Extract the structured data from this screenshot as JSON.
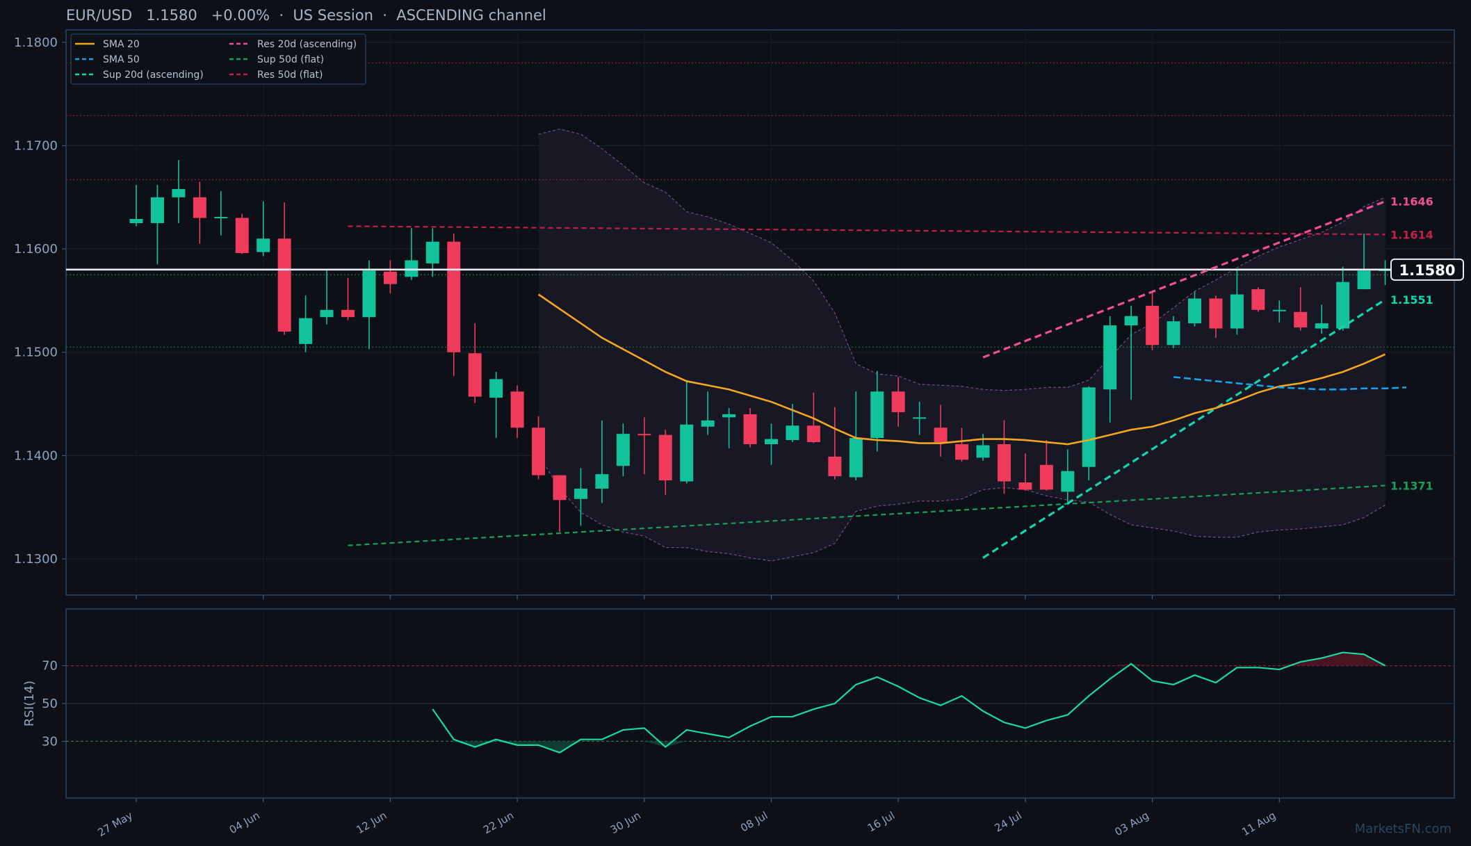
{
  "header": {
    "title": "EUR/USD   1.1580   +0.00%  ·  US Session  ·  ASCENDING channel"
  },
  "watermark": "MarketsFN.com",
  "colors": {
    "up": "#12c29b",
    "down": "#ef3b5c",
    "sma20": "#f5a623",
    "sma50": "#1aa3e8",
    "sup20": "#12d6b0",
    "res20": "#ee4f95",
    "sup50": "#1a9e5c",
    "res50": "#c0204a",
    "rsi": "#19d9a4",
    "band": "#7a4a86"
  },
  "chart_data": {
    "type": "candlestick",
    "symbol": "EUR/USD",
    "price_ylim": [
      1.1265,
      1.1812
    ],
    "price_ticks": [
      "1.1300",
      "1.1400",
      "1.1500",
      "1.1600",
      "1.1700",
      "1.1800"
    ],
    "x_tick_labels": [
      "27 May",
      "04 Jun",
      "12 Jun",
      "22 Jun",
      "30 Jun",
      "08 Jul",
      "16 Jul",
      "24 Jul",
      "03 Aug",
      "11 Aug"
    ],
    "x_tick_index": [
      0,
      6,
      12,
      18,
      24,
      30,
      36,
      42,
      48,
      54
    ],
    "candles": [
      {
        "o": 1.1625,
        "h": 1.1662,
        "l": 1.1622,
        "c": 1.1629
      },
      {
        "o": 1.1625,
        "h": 1.1662,
        "l": 1.1585,
        "c": 1.165
      },
      {
        "o": 1.165,
        "h": 1.1686,
        "l": 1.1625,
        "c": 1.1658
      },
      {
        "o": 1.165,
        "h": 1.1665,
        "l": 1.1605,
        "c": 1.163
      },
      {
        "o": 1.163,
        "h": 1.1656,
        "l": 1.1613,
        "c": 1.1631
      },
      {
        "o": 1.163,
        "h": 1.1634,
        "l": 1.1595,
        "c": 1.1596
      },
      {
        "o": 1.1597,
        "h": 1.1646,
        "l": 1.1593,
        "c": 1.161
      },
      {
        "o": 1.161,
        "h": 1.1645,
        "l": 1.1517,
        "c": 1.152
      },
      {
        "o": 1.1508,
        "h": 1.1555,
        "l": 1.15,
        "c": 1.1533
      },
      {
        "o": 1.1534,
        "h": 1.1579,
        "l": 1.1527,
        "c": 1.1541
      },
      {
        "o": 1.1541,
        "h": 1.1572,
        "l": 1.1531,
        "c": 1.1534
      },
      {
        "o": 1.1534,
        "h": 1.1589,
        "l": 1.1503,
        "c": 1.1579
      },
      {
        "o": 1.1578,
        "h": 1.1589,
        "l": 1.1557,
        "c": 1.1566
      },
      {
        "o": 1.1573,
        "h": 1.162,
        "l": 1.157,
        "c": 1.1589
      },
      {
        "o": 1.1586,
        "h": 1.162,
        "l": 1.1573,
        "c": 1.1607
      },
      {
        "o": 1.1607,
        "h": 1.1615,
        "l": 1.1477,
        "c": 1.15
      },
      {
        "o": 1.1499,
        "h": 1.1528,
        "l": 1.1451,
        "c": 1.1457
      },
      {
        "o": 1.1456,
        "h": 1.1481,
        "l": 1.1417,
        "c": 1.1474
      },
      {
        "o": 1.1462,
        "h": 1.1468,
        "l": 1.1417,
        "c": 1.1427
      },
      {
        "o": 1.1427,
        "h": 1.1438,
        "l": 1.1377,
        "c": 1.1381
      },
      {
        "o": 1.1381,
        "h": 1.1381,
        "l": 1.1326,
        "c": 1.1357
      },
      {
        "o": 1.1358,
        "h": 1.1388,
        "l": 1.1332,
        "c": 1.1368
      },
      {
        "o": 1.1368,
        "h": 1.1434,
        "l": 1.1354,
        "c": 1.1382
      },
      {
        "o": 1.139,
        "h": 1.1431,
        "l": 1.138,
        "c": 1.1421
      },
      {
        "o": 1.1421,
        "h": 1.1437,
        "l": 1.1382,
        "c": 1.142
      },
      {
        "o": 1.142,
        "h": 1.1425,
        "l": 1.1362,
        "c": 1.1376
      },
      {
        "o": 1.1375,
        "h": 1.1473,
        "l": 1.1373,
        "c": 1.143
      },
      {
        "o": 1.1428,
        "h": 1.1462,
        "l": 1.142,
        "c": 1.1434
      },
      {
        "o": 1.1437,
        "h": 1.1446,
        "l": 1.1407,
        "c": 1.144
      },
      {
        "o": 1.144,
        "h": 1.1446,
        "l": 1.1408,
        "c": 1.1411
      },
      {
        "o": 1.1411,
        "h": 1.1431,
        "l": 1.1391,
        "c": 1.1416
      },
      {
        "o": 1.1415,
        "h": 1.145,
        "l": 1.1413,
        "c": 1.1429
      },
      {
        "o": 1.1429,
        "h": 1.1461,
        "l": 1.1412,
        "c": 1.1413
      },
      {
        "o": 1.1399,
        "h": 1.1447,
        "l": 1.1377,
        "c": 1.138
      },
      {
        "o": 1.1379,
        "h": 1.1462,
        "l": 1.1376,
        "c": 1.1417
      },
      {
        "o": 1.1417,
        "h": 1.1482,
        "l": 1.1404,
        "c": 1.1462
      },
      {
        "o": 1.1462,
        "h": 1.1476,
        "l": 1.1428,
        "c": 1.1442
      },
      {
        "o": 1.1436,
        "h": 1.1452,
        "l": 1.142,
        "c": 1.1437
      },
      {
        "o": 1.1427,
        "h": 1.1449,
        "l": 1.1399,
        "c": 1.1413
      },
      {
        "o": 1.1411,
        "h": 1.1427,
        "l": 1.1394,
        "c": 1.1396
      },
      {
        "o": 1.1398,
        "h": 1.1421,
        "l": 1.1395,
        "c": 1.141
      },
      {
        "o": 1.1411,
        "h": 1.1434,
        "l": 1.1363,
        "c": 1.1375
      },
      {
        "o": 1.1374,
        "h": 1.1402,
        "l": 1.1366,
        "c": 1.1367
      },
      {
        "o": 1.1391,
        "h": 1.1415,
        "l": 1.1366,
        "c": 1.1367
      },
      {
        "o": 1.1365,
        "h": 1.1406,
        "l": 1.1355,
        "c": 1.1385
      },
      {
        "o": 1.1389,
        "h": 1.1467,
        "l": 1.1376,
        "c": 1.1466
      },
      {
        "o": 1.1464,
        "h": 1.1535,
        "l": 1.1432,
        "c": 1.1526
      },
      {
        "o": 1.1526,
        "h": 1.1545,
        "l": 1.1454,
        "c": 1.1535
      },
      {
        "o": 1.1545,
        "h": 1.1559,
        "l": 1.1502,
        "c": 1.1507
      },
      {
        "o": 1.1507,
        "h": 1.1535,
        "l": 1.1504,
        "c": 1.153
      },
      {
        "o": 1.1528,
        "h": 1.1559,
        "l": 1.1525,
        "c": 1.1552
      },
      {
        "o": 1.1552,
        "h": 1.1555,
        "l": 1.1514,
        "c": 1.1523
      },
      {
        "o": 1.1523,
        "h": 1.158,
        "l": 1.1517,
        "c": 1.1556
      },
      {
        "o": 1.1561,
        "h": 1.1563,
        "l": 1.1539,
        "c": 1.1541
      },
      {
        "o": 1.1541,
        "h": 1.155,
        "l": 1.1529,
        "c": 1.1541
      },
      {
        "o": 1.1539,
        "h": 1.1563,
        "l": 1.1521,
        "c": 1.1524
      },
      {
        "o": 1.1523,
        "h": 1.1546,
        "l": 1.1518,
        "c": 1.1528
      },
      {
        "o": 1.1523,
        "h": 1.1583,
        "l": 1.1521,
        "c": 1.1568
      },
      {
        "o": 1.1561,
        "h": 1.1615,
        "l": 1.1561,
        "c": 1.1579
      },
      {
        "o": 1.1579,
        "h": 1.1589,
        "l": 1.1565,
        "c": 1.158
      }
    ],
    "current_price": {
      "value": 1.158,
      "label": "1.1580"
    },
    "hlines": [
      {
        "y": 1.178,
        "color": "#8e2233",
        "kind": "resistance-dotted"
      },
      {
        "y": 1.1729,
        "color": "#8e2233",
        "kind": "resistance-dotted"
      },
      {
        "y": 1.1667,
        "color": "#8e2233",
        "kind": "resistance-dotted"
      },
      {
        "y": 1.1575,
        "color": "#1b7a45",
        "kind": "support-dotted"
      },
      {
        "y": 1.1505,
        "color": "#1b7a45",
        "kind": "support-dotted"
      }
    ],
    "sma20": {
      "x_start": 19,
      "values": [
        1.1556,
        1.1542,
        1.1528,
        1.1514,
        1.1503,
        1.1492,
        1.1481,
        1.1472,
        1.1468,
        1.1464,
        1.1458,
        1.1452,
        1.1444,
        1.1436,
        1.1426,
        1.1417,
        1.1415,
        1.1414,
        1.1412,
        1.1412,
        1.1414,
        1.1416,
        1.1416,
        1.1415,
        1.1413,
        1.1411,
        1.1415,
        1.142,
        1.1425,
        1.1428,
        1.1434,
        1.1441,
        1.1446,
        1.1453,
        1.1461,
        1.1467,
        1.147,
        1.1475,
        1.1481,
        1.1489,
        1.1498
      ]
    },
    "sma50": {
      "x_start": 49,
      "values": [
        1.1476,
        1.1474,
        1.1472,
        1.147,
        1.1468,
        1.1466,
        1.1465,
        1.1464,
        1.1464,
        1.1465,
        1.1465,
        1.1466
      ]
    },
    "bands": {
      "x_start": 19,
      "upper": [
        1.1711,
        1.1716,
        1.1711,
        1.1697,
        1.1681,
        1.1664,
        1.1655,
        1.1636,
        1.1631,
        1.1624,
        1.1615,
        1.1606,
        1.1589,
        1.1569,
        1.1538,
        1.1489,
        1.1479,
        1.1477,
        1.1469,
        1.1468,
        1.1467,
        1.1464,
        1.1463,
        1.1464,
        1.1466,
        1.1466,
        1.1473,
        1.1495,
        1.1517,
        1.1528,
        1.1543,
        1.1559,
        1.157,
        1.1582,
        1.1593,
        1.1602,
        1.1609,
        1.1616,
        1.1626,
        1.1641,
        1.165
      ],
      "lower": [
        1.1401,
        1.1368,
        1.1345,
        1.1333,
        1.1326,
        1.1322,
        1.1311,
        1.1311,
        1.1307,
        1.1305,
        1.1301,
        1.1298,
        1.1302,
        1.1306,
        1.1315,
        1.1346,
        1.1351,
        1.1353,
        1.1356,
        1.1356,
        1.1358,
        1.1367,
        1.1369,
        1.1367,
        1.1361,
        1.1357,
        1.1355,
        1.1343,
        1.1333,
        1.133,
        1.1327,
        1.1322,
        1.1321,
        1.1321,
        1.1326,
        1.1328,
        1.1329,
        1.1331,
        1.1333,
        1.134,
        1.1352
      ]
    },
    "trend_lines": [
      {
        "name": "Res 50d (flat)",
        "x": [
          10,
          59
        ],
        "y": [
          1.1622,
          1.1614
        ],
        "end_label": "1.1614",
        "color": "#c0204a",
        "width": 2.2
      },
      {
        "name": "Sup 50d (flat)",
        "x": [
          10,
          59
        ],
        "y": [
          1.1313,
          1.1371
        ],
        "end_label": "1.1371",
        "color": "#1a9e5c",
        "width": 2.2
      },
      {
        "name": "Res 20d (ascending)",
        "x": [
          40,
          59
        ],
        "y": [
          1.1495,
          1.1646
        ],
        "end_label": "1.1646",
        "color": "#ee4f95",
        "width": 3.2
      },
      {
        "name": "Sup 20d (ascending)",
        "x": [
          40,
          59
        ],
        "y": [
          1.1301,
          1.1551
        ],
        "end_label": "1.1551",
        "color": "#12d6b0",
        "width": 3.2
      }
    ],
    "legend": {
      "placement": "top-left",
      "items": [
        {
          "label": "SMA 20",
          "color": "#f5a623",
          "dash": false
        },
        {
          "label": "SMA 50",
          "color": "#1aa3e8",
          "dash": true
        },
        {
          "label": "Sup 20d (ascending)",
          "color": "#12d6b0",
          "dash": true
        },
        {
          "label": "Res 20d (ascending)",
          "color": "#ee4f95",
          "dash": true
        },
        {
          "label": "Sup 50d (flat)",
          "color": "#1a9e5c",
          "dash": true
        },
        {
          "label": "Res 50d (flat)",
          "color": "#c0204a",
          "dash": true
        }
      ]
    },
    "rsi": {
      "ylabel": "RSI(14)",
      "ylim": [
        0,
        100
      ],
      "ticks": [
        "30",
        "50",
        "70"
      ],
      "levels": [
        30,
        50,
        70
      ],
      "x_start": 14,
      "values": [
        47,
        31,
        27,
        31,
        28,
        28,
        24,
        31,
        31,
        36,
        37,
        27,
        36,
        34,
        32,
        38,
        43,
        43,
        47,
        50,
        60,
        64,
        59,
        53,
        49,
        54,
        46,
        40,
        37,
        41,
        44,
        54,
        63,
        71,
        62,
        60,
        65,
        61,
        69,
        69,
        68,
        72,
        74,
        77,
        76,
        70
      ]
    }
  }
}
